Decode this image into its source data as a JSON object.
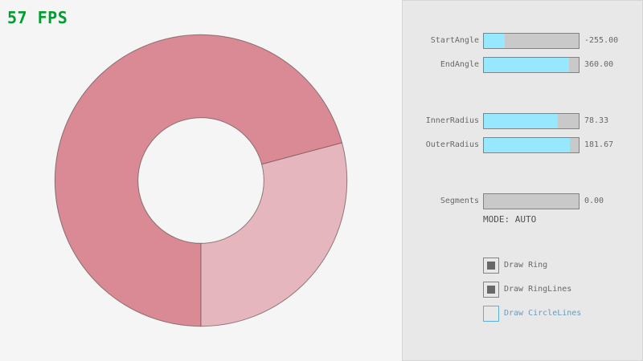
{
  "fps": {
    "text": "57 FPS",
    "color": "#009E2F"
  },
  "ring": {
    "fill_dark": "#D98A94",
    "fill_light": "#E5B6BD",
    "line_color": "rgba(0,0,0,0.4)",
    "inner_hole_color": "#F5F5F5",
    "shape": "donut-ring",
    "start_angle": -255.0,
    "end_angle": 360.0,
    "inner_radius": 78.33,
    "outer_radius": 181.67
  },
  "panel": {
    "sliders": [
      {
        "label": "StartAngle",
        "value": "-255.00",
        "fraction": 21.67
      },
      {
        "label": "EndAngle",
        "value": "360.00",
        "fraction": 90.0
      },
      {
        "label": "InnerRadius",
        "value": "78.33",
        "fraction": 78.33
      },
      {
        "label": "OuterRadius",
        "value": "181.67",
        "fraction": 90.83
      },
      {
        "label": "Segments",
        "value": "0.00",
        "fraction": 0.0
      }
    ],
    "mode_label": "MODE: AUTO",
    "checkboxes": [
      {
        "label": "Draw Ring",
        "checked": true,
        "focused": false
      },
      {
        "label": "Draw RingLines",
        "checked": true,
        "focused": false
      },
      {
        "label": "Draw CircleLines",
        "checked": false,
        "focused": true
      }
    ],
    "colors": {
      "slider_fill": "#97E8FF",
      "slider_bg": "#C9C9C9",
      "border_normal": "#838383",
      "text_normal": "#686868",
      "border_focused": "#5BB2D9",
      "text_focused": "#6C9BBC",
      "mode_text": "#505050",
      "panel_bg": "#E8E8E8",
      "panel_border": "#D5D5D5",
      "background": "#F5F5F5"
    }
  }
}
